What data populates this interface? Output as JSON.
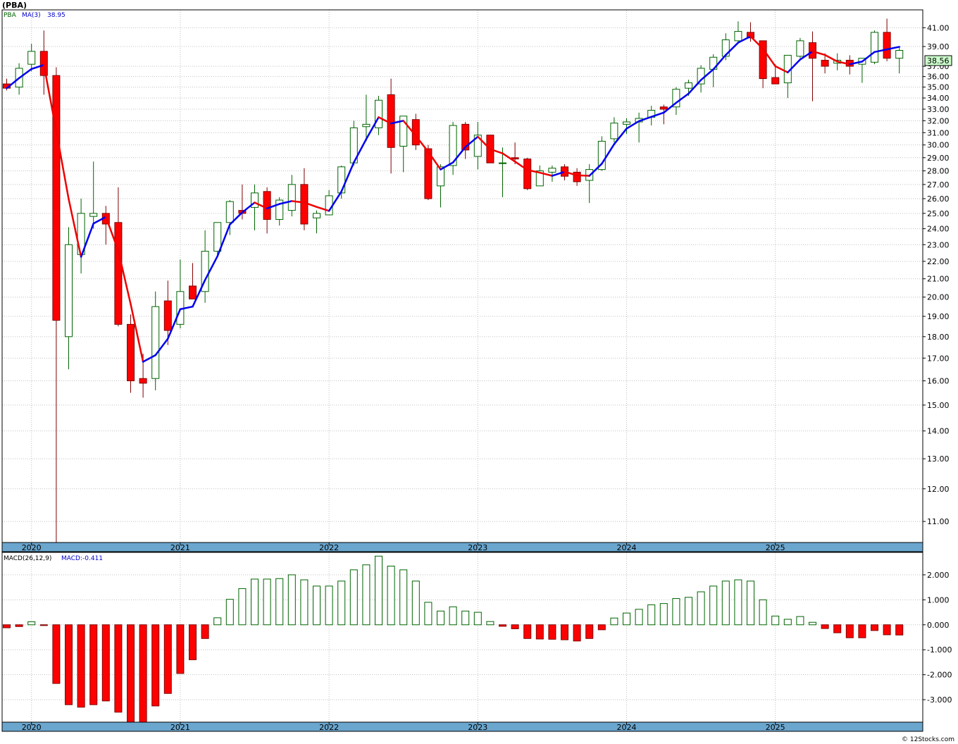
{
  "title": "(PBA)",
  "footer": "© 12Stocks.com",
  "price_panel": {
    "series_label": "PBA",
    "ma_label": "MA(3)",
    "ma_value": "38.95",
    "last_price": "38.56"
  },
  "macd_panel": {
    "label": "MACD(26,12,9)",
    "value_label": "MACD:-0.411"
  },
  "colors": {
    "up_fill": "#ffffff",
    "up_stroke": "#006400",
    "down_fill": "#ff0000",
    "down_stroke": "#800000",
    "ma_up": "#0000ee",
    "ma_down": "#ee0000",
    "year_band": "#6aa6ce",
    "grid": "#c0c0c0",
    "last_price_bg": "#ccffcc"
  },
  "chart_data": [
    {
      "type": "candlestick",
      "frequency": "monthly",
      "y_scale": "log",
      "ylim": [
        10.4,
        43.0
      ],
      "y_ticks": [
        "11.00",
        "12.00",
        "13.00",
        "14.00",
        "15.00",
        "16.00",
        "17.00",
        "18.00",
        "19.00",
        "20.00",
        "21.00",
        "22.00",
        "23.00",
        "24.00",
        "25.00",
        "26.00",
        "27.00",
        "28.00",
        "29.00",
        "30.00",
        "31.00",
        "32.00",
        "33.00",
        "34.00",
        "35.00",
        "36.00",
        "37.00",
        "39.00",
        "41.00"
      ],
      "x_labels": [
        "2020",
        "2021",
        "2022",
        "2023",
        "2024",
        "2025"
      ],
      "x_label_month_index": [
        2,
        14,
        26,
        38,
        50,
        62
      ],
      "moving_average_period": 3,
      "candles": [
        {
          "o": 35.3,
          "h": 35.8,
          "l": 34.7,
          "c": 34.9
        },
        {
          "o": 35.0,
          "h": 37.3,
          "l": 34.3,
          "c": 36.8
        },
        {
          "o": 37.2,
          "h": 39.3,
          "l": 36.5,
          "c": 38.5
        },
        {
          "o": 38.5,
          "h": 40.7,
          "l": 34.3,
          "c": 36.1
        },
        {
          "o": 36.1,
          "h": 36.9,
          "l": 10.3,
          "c": 18.8
        },
        {
          "o": 18.0,
          "h": 24.1,
          "l": 16.5,
          "c": 23.0
        },
        {
          "o": 22.4,
          "h": 26.0,
          "l": 21.3,
          "c": 25.0
        },
        {
          "o": 24.8,
          "h": 28.7,
          "l": 24.0,
          "c": 25.0
        },
        {
          "o": 25.0,
          "h": 25.5,
          "l": 23.0,
          "c": 24.3
        },
        {
          "o": 24.4,
          "h": 26.8,
          "l": 18.5,
          "c": 18.6
        },
        {
          "o": 18.6,
          "h": 19.1,
          "l": 15.5,
          "c": 16.0
        },
        {
          "o": 16.1,
          "h": 17.2,
          "l": 15.3,
          "c": 15.9
        },
        {
          "o": 16.1,
          "h": 20.3,
          "l": 15.6,
          "c": 19.5
        },
        {
          "o": 19.8,
          "h": 20.9,
          "l": 17.6,
          "c": 18.3
        },
        {
          "o": 18.6,
          "h": 22.1,
          "l": 18.4,
          "c": 20.3
        },
        {
          "o": 20.6,
          "h": 21.9,
          "l": 20.0,
          "c": 19.9
        },
        {
          "o": 20.3,
          "h": 23.9,
          "l": 19.7,
          "c": 22.6
        },
        {
          "o": 22.6,
          "h": 24.1,
          "l": 22.3,
          "c": 24.4
        },
        {
          "o": 24.4,
          "h": 25.9,
          "l": 23.6,
          "c": 25.8
        },
        {
          "o": 25.2,
          "h": 27.0,
          "l": 24.6,
          "c": 25.0
        },
        {
          "o": 25.4,
          "h": 27.0,
          "l": 23.9,
          "c": 26.4
        },
        {
          "o": 26.5,
          "h": 26.8,
          "l": 23.7,
          "c": 24.6
        },
        {
          "o": 24.6,
          "h": 26.1,
          "l": 24.2,
          "c": 25.9
        },
        {
          "o": 25.2,
          "h": 27.7,
          "l": 24.8,
          "c": 27.0
        },
        {
          "o": 27.0,
          "h": 28.2,
          "l": 23.9,
          "c": 24.3
        },
        {
          "o": 24.7,
          "h": 25.2,
          "l": 23.7,
          "c": 25.0
        },
        {
          "o": 24.9,
          "h": 26.6,
          "l": 24.9,
          "c": 26.2
        },
        {
          "o": 26.4,
          "h": 28.4,
          "l": 26.0,
          "c": 28.3
        },
        {
          "o": 28.6,
          "h": 32.0,
          "l": 28.4,
          "c": 31.4
        },
        {
          "o": 31.5,
          "h": 34.3,
          "l": 30.3,
          "c": 31.7
        },
        {
          "o": 31.4,
          "h": 34.2,
          "l": 30.8,
          "c": 33.8
        },
        {
          "o": 34.3,
          "h": 35.8,
          "l": 27.8,
          "c": 29.8
        },
        {
          "o": 29.9,
          "h": 32.3,
          "l": 27.9,
          "c": 32.4
        },
        {
          "o": 32.1,
          "h": 32.6,
          "l": 29.6,
          "c": 30.0
        },
        {
          "o": 29.7,
          "h": 30.0,
          "l": 25.9,
          "c": 26.0
        },
        {
          "o": 26.9,
          "h": 28.5,
          "l": 25.4,
          "c": 28.3
        },
        {
          "o": 28.4,
          "h": 31.9,
          "l": 27.7,
          "c": 31.6
        },
        {
          "o": 31.7,
          "h": 31.9,
          "l": 28.9,
          "c": 29.6
        },
        {
          "o": 29.1,
          "h": 31.9,
          "l": 28.1,
          "c": 30.8
        },
        {
          "o": 30.8,
          "h": 30.8,
          "l": 28.6,
          "c": 28.6
        },
        {
          "o": 28.6,
          "h": 29.8,
          "l": 26.1,
          "c": 28.6
        },
        {
          "o": 29.0,
          "h": 30.2,
          "l": 28.5,
          "c": 28.9
        },
        {
          "o": 28.9,
          "h": 29.0,
          "l": 26.6,
          "c": 26.7
        },
        {
          "o": 26.9,
          "h": 28.4,
          "l": 26.9,
          "c": 28.0
        },
        {
          "o": 27.9,
          "h": 28.4,
          "l": 27.2,
          "c": 28.2
        },
        {
          "o": 28.3,
          "h": 28.5,
          "l": 27.3,
          "c": 27.6
        },
        {
          "o": 27.9,
          "h": 28.2,
          "l": 26.9,
          "c": 27.2
        },
        {
          "o": 27.3,
          "h": 28.5,
          "l": 25.7,
          "c": 28.1
        },
        {
          "o": 28.1,
          "h": 30.7,
          "l": 28.0,
          "c": 30.3
        },
        {
          "o": 30.5,
          "h": 32.3,
          "l": 30.2,
          "c": 31.8
        },
        {
          "o": 31.7,
          "h": 32.2,
          "l": 30.9,
          "c": 31.9
        },
        {
          "o": 31.9,
          "h": 32.7,
          "l": 30.2,
          "c": 32.2
        },
        {
          "o": 32.3,
          "h": 33.3,
          "l": 31.6,
          "c": 32.9
        },
        {
          "o": 33.2,
          "h": 33.4,
          "l": 31.7,
          "c": 33.0
        },
        {
          "o": 33.2,
          "h": 35.0,
          "l": 32.5,
          "c": 34.8
        },
        {
          "o": 34.9,
          "h": 35.7,
          "l": 34.2,
          "c": 35.4
        },
        {
          "o": 35.3,
          "h": 37.1,
          "l": 34.5,
          "c": 36.8
        },
        {
          "o": 36.7,
          "h": 38.2,
          "l": 35.0,
          "c": 37.9
        },
        {
          "o": 38.0,
          "h": 40.4,
          "l": 37.6,
          "c": 39.7
        },
        {
          "o": 39.6,
          "h": 41.7,
          "l": 39.5,
          "c": 40.6
        },
        {
          "o": 40.5,
          "h": 41.6,
          "l": 39.5,
          "c": 39.9
        },
        {
          "o": 39.6,
          "h": 39.5,
          "l": 34.9,
          "c": 35.8
        },
        {
          "o": 35.9,
          "h": 37.2,
          "l": 35.3,
          "c": 35.3
        },
        {
          "o": 35.4,
          "h": 38.0,
          "l": 34.0,
          "c": 38.1
        },
        {
          "o": 38.0,
          "h": 39.9,
          "l": 37.8,
          "c": 39.6
        },
        {
          "o": 39.4,
          "h": 40.6,
          "l": 33.7,
          "c": 37.8
        },
        {
          "o": 37.6,
          "h": 38.3,
          "l": 36.3,
          "c": 37.0
        },
        {
          "o": 37.3,
          "h": 38.3,
          "l": 36.6,
          "c": 37.6
        },
        {
          "o": 37.6,
          "h": 38.1,
          "l": 36.2,
          "c": 37.0
        },
        {
          "o": 37.2,
          "h": 37.8,
          "l": 35.4,
          "c": 37.8
        },
        {
          "o": 37.4,
          "h": 40.7,
          "l": 37.2,
          "c": 40.5
        },
        {
          "o": 40.5,
          "h": 42.0,
          "l": 37.5,
          "c": 37.8
        },
        {
          "o": 37.8,
          "h": 39.0,
          "l": 36.3,
          "c": 38.6
        }
      ]
    },
    {
      "type": "bar",
      "name": "MACD(26,12,9)",
      "ylim": [
        -3.9,
        2.9
      ],
      "y_ticks": [
        "2.000",
        "1.000",
        "0.000",
        "-1.000",
        "-2.000",
        "-3.000"
      ],
      "x_labels": [
        "2020",
        "2021",
        "2022",
        "2023",
        "2024",
        "2025"
      ],
      "values": [
        -0.12,
        -0.07,
        0.12,
        -0.03,
        -2.35,
        -3.2,
        -3.3,
        -3.2,
        -3.05,
        -3.5,
        -3.9,
        -3.9,
        -3.25,
        -2.75,
        -1.95,
        -1.4,
        -0.55,
        0.28,
        1.02,
        1.45,
        1.83,
        1.83,
        1.85,
        2.0,
        1.8,
        1.55,
        1.55,
        1.75,
        2.2,
        2.4,
        2.75,
        2.35,
        2.2,
        1.75,
        0.9,
        0.55,
        0.72,
        0.55,
        0.5,
        0.13,
        -0.06,
        -0.16,
        -0.55,
        -0.57,
        -0.58,
        -0.6,
        -0.65,
        -0.55,
        -0.2,
        0.27,
        0.47,
        0.62,
        0.8,
        0.85,
        1.05,
        1.1,
        1.32,
        1.55,
        1.75,
        1.8,
        1.75,
        1.0,
        0.35,
        0.22,
        0.33,
        0.1,
        -0.15,
        -0.32,
        -0.52,
        -0.52,
        -0.23,
        -0.4,
        -0.41
      ]
    }
  ]
}
